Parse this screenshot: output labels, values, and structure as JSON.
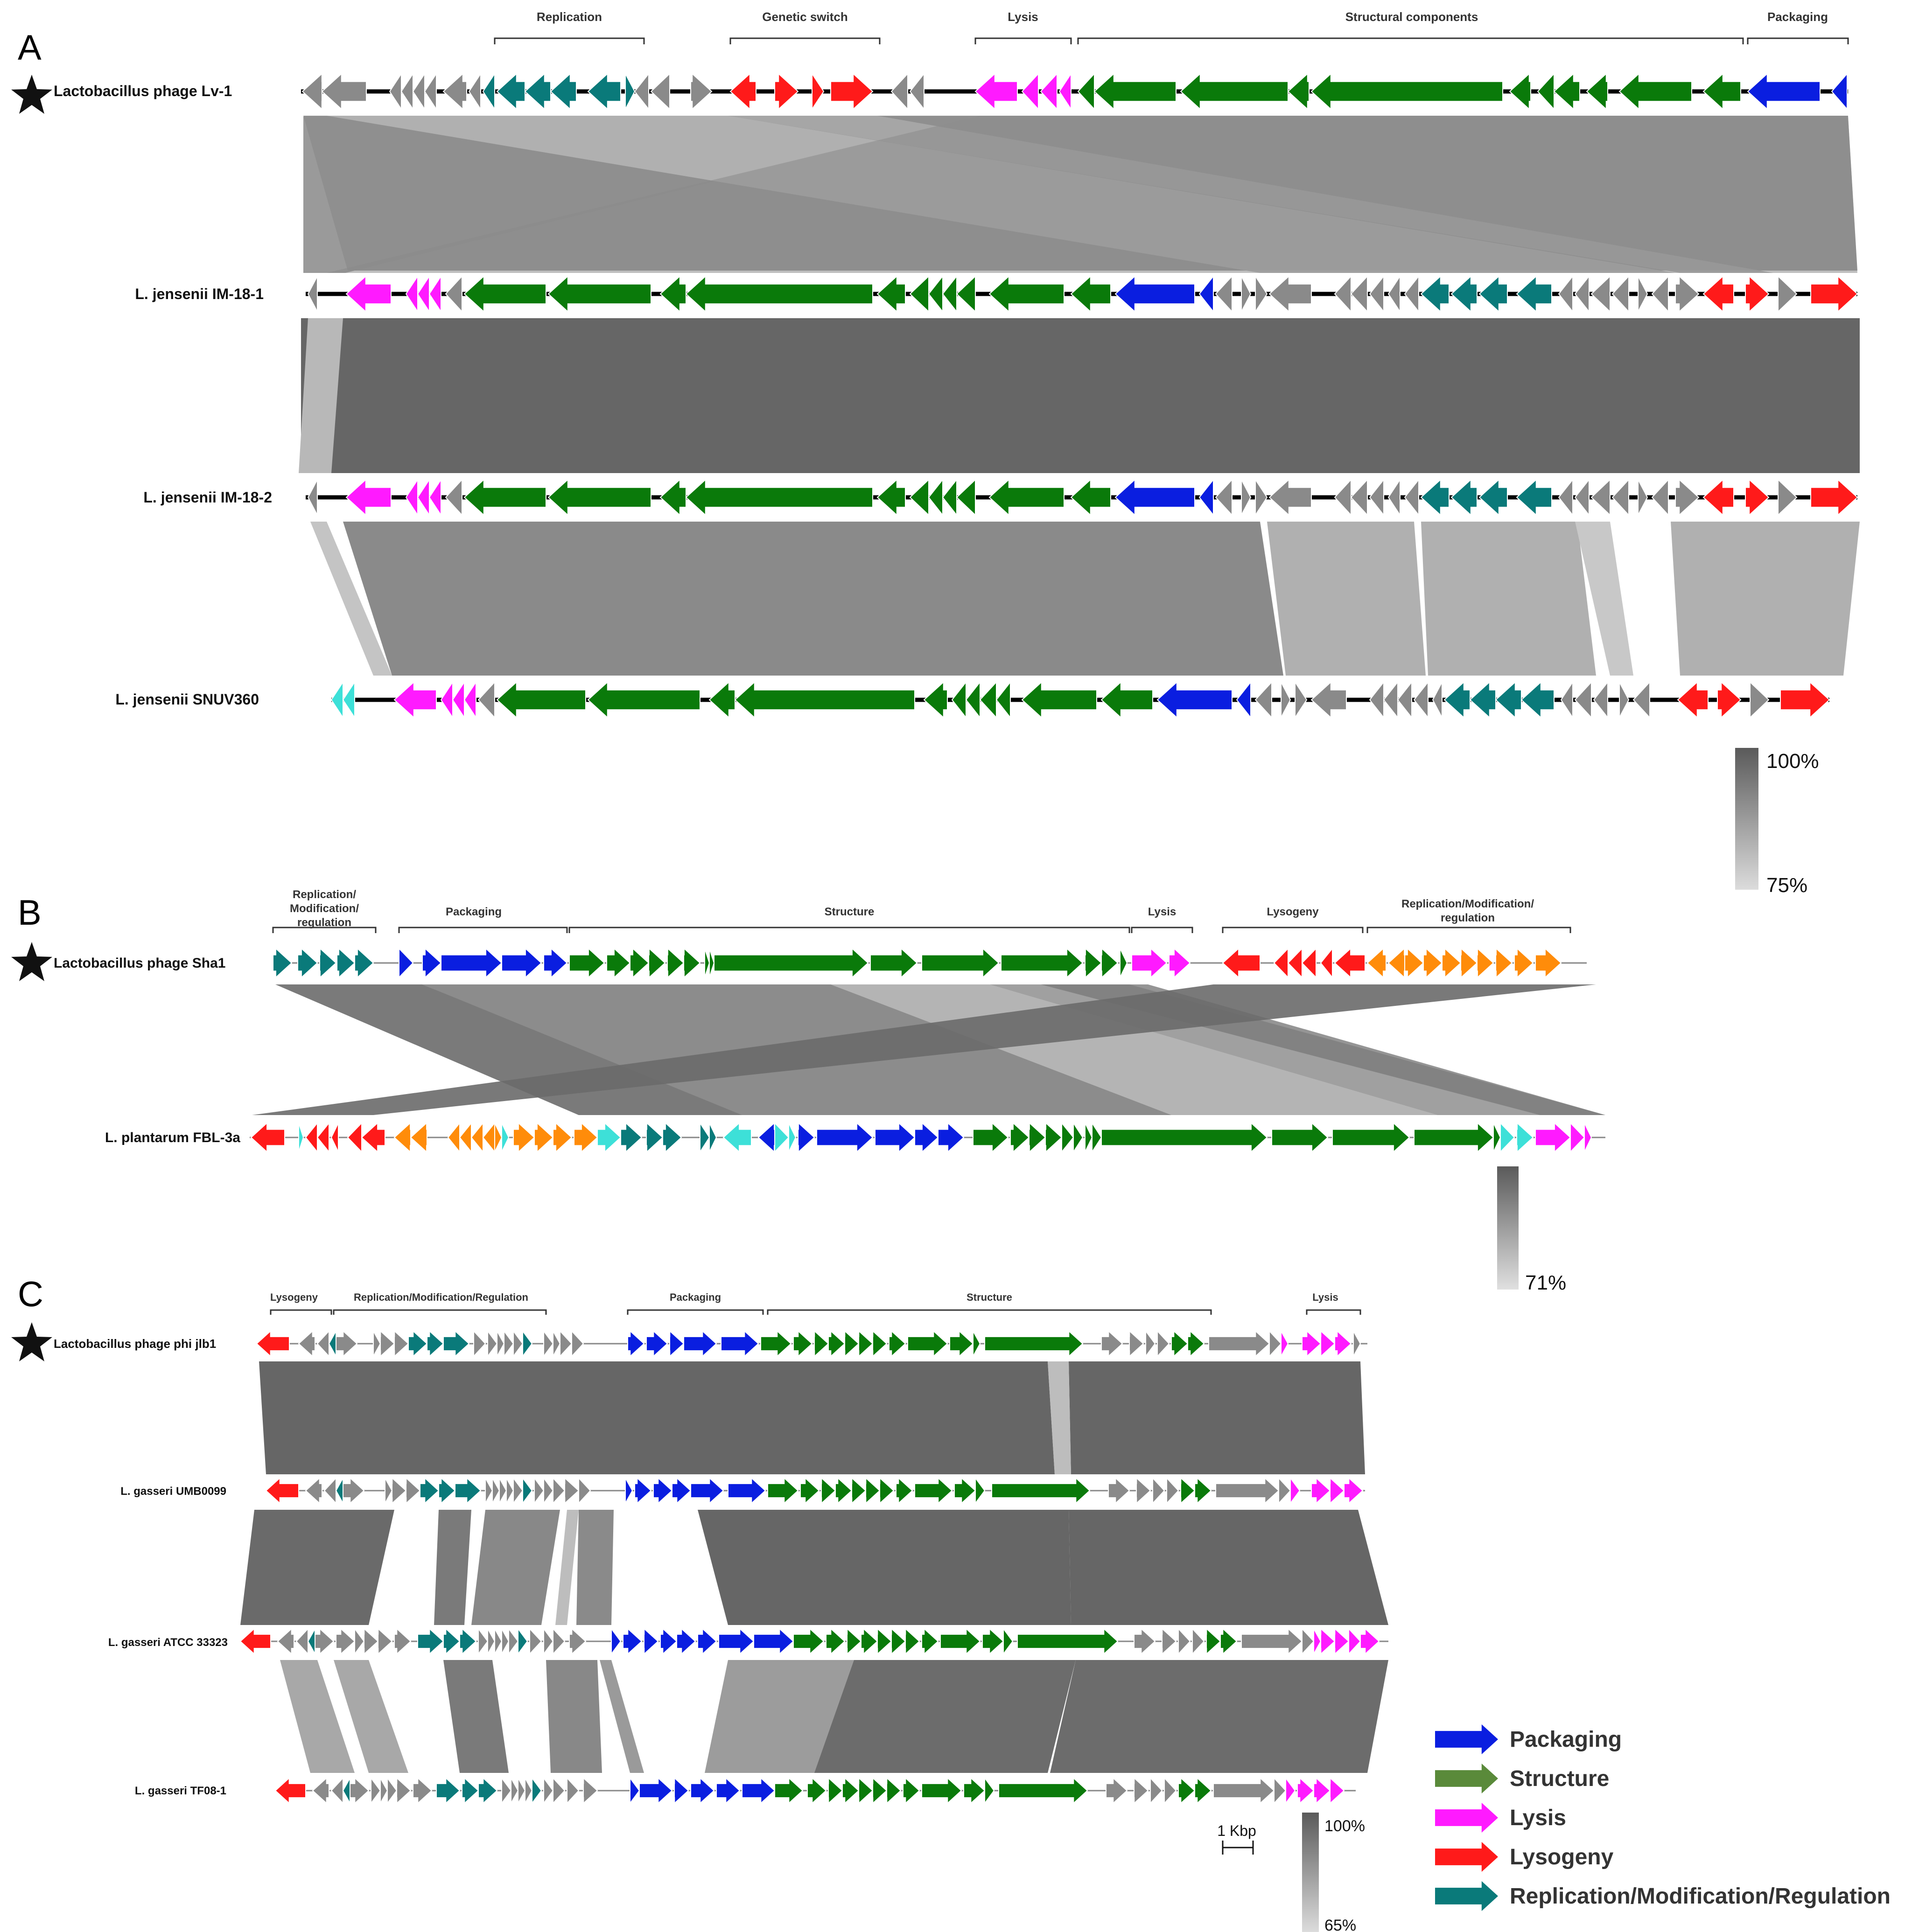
{
  "colors": {
    "packaging": "#0a1ee0",
    "structure": "#0a7a0a",
    "lysis": "#ff1aff",
    "lysogeny": "#ff1a1a",
    "replication": "#0a7a7a",
    "orange": "#ff8c0a",
    "cyan": "#3de0d8",
    "gray": "#8a8a8a",
    "legend_structure": "#5a8a3a",
    "band_dark": "#666666",
    "band_mid": "#8c8c8c",
    "band_light": "#b4b4b4"
  },
  "panels": [
    {
      "letter": "A",
      "regions": [
        "Replication",
        "Genetic switch",
        "Lysis",
        "Structural components",
        "Packaging"
      ],
      "genomes": [
        {
          "name": "Lactobacillus phage Lv-1",
          "reference": true
        },
        {
          "name": "L. jensenii IM-18-1",
          "reference": false
        },
        {
          "name": "L. jensenii IM-18-2",
          "reference": false
        },
        {
          "name": "L. jensenii SNUV360",
          "reference": false
        }
      ],
      "identity_scale": {
        "max": "100%",
        "min": "75%"
      }
    },
    {
      "letter": "B",
      "regions": [
        "Replication/ Modification/ regulation",
        "Packaging",
        "Structure",
        "Lysis",
        "Lysogeny",
        "Replication/Modification/ regulation"
      ],
      "genomes": [
        {
          "name": "Lactobacillus phage Sha1",
          "reference": true
        },
        {
          "name": "L. plantarum FBL-3a",
          "reference": false
        }
      ],
      "identity_scale": {
        "max": "",
        "min": "71%"
      }
    },
    {
      "letter": "C",
      "regions": [
        "Lysogeny",
        "Replication/Modification/Regulation",
        "Packaging",
        "Structure",
        "Lysis"
      ],
      "genomes": [
        {
          "name": "Lactobacillus phage phi jlb1",
          "reference": true
        },
        {
          "name": "L. gasseri UMB0099",
          "reference": false
        },
        {
          "name": "L. gasseri ATCC 33323",
          "reference": false
        },
        {
          "name": "L. gasseri TF08-1",
          "reference": false
        }
      ],
      "identity_scale": {
        "max": "100%",
        "min": "65%"
      },
      "scale_bar": "1 Kbp"
    }
  ],
  "legend": [
    {
      "label": "Packaging",
      "color_key": "packaging"
    },
    {
      "label": "Structure",
      "color_key": "legend_structure"
    },
    {
      "label": "Lysis",
      "color_key": "lysis"
    },
    {
      "label": "Lysogeny",
      "color_key": "lysogeny"
    },
    {
      "label": "Replication/Modification/Regulation",
      "color_key": "replication"
    }
  ]
}
